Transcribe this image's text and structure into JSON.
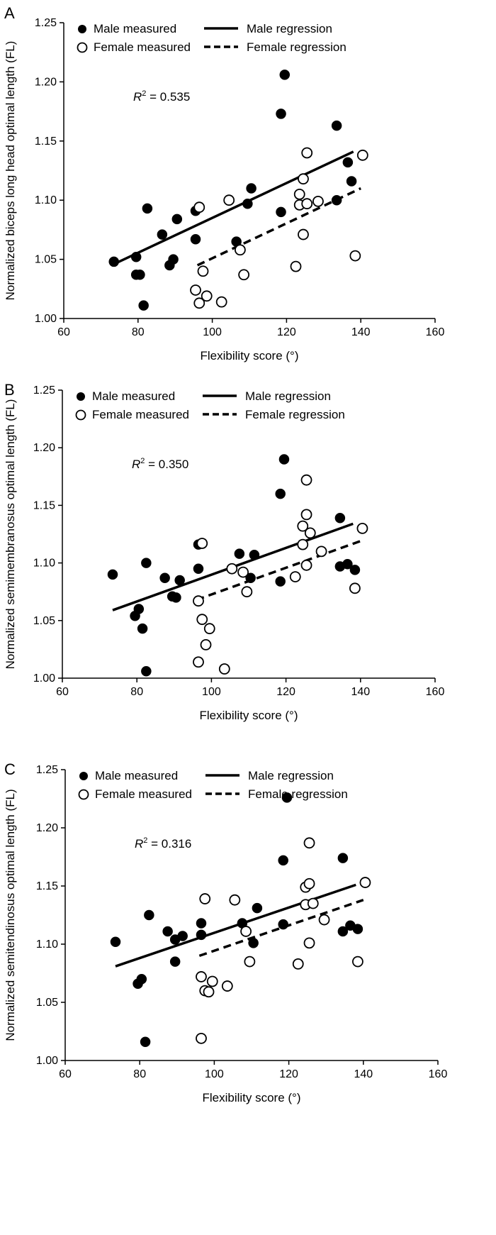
{
  "chart_data": [
    {
      "type": "scatter",
      "panel": "A",
      "xlabel": "Flexibility score (°)",
      "ylabel": "Normalized biceps long head optimal length (FL)",
      "xlim": [
        60,
        160
      ],
      "ylim": [
        1.0,
        1.25
      ],
      "xticks": [
        "60",
        "80",
        "100",
        "120",
        "140",
        "160"
      ],
      "yticks": [
        "1.00",
        "1.05",
        "1.10",
        "1.15",
        "1.20",
        "1.25"
      ],
      "legend": {
        "male_measured": "Male measured",
        "female_measured": "Female measured",
        "male_regression": "Male regression",
        "female_regression": "Female regression"
      },
      "r2_prefix": "R",
      "r2_sup": "2",
      "r2_value": " = 0.535",
      "series": [
        {
          "name": "Male measured",
          "x": [
            73.5,
            79.5,
            80.5,
            82.5,
            79.5,
            81.5,
            86.5,
            89.5,
            88.5,
            90.5,
            95.5,
            95.5,
            106.5,
            109.5,
            110.5,
            118.5,
            118.5,
            119.5,
            133.5,
            133.5,
            136.5,
            137.5
          ],
          "y": [
            1.048,
            1.052,
            1.037,
            1.093,
            1.037,
            1.011,
            1.071,
            1.05,
            1.045,
            1.084,
            1.067,
            1.091,
            1.065,
            1.097,
            1.11,
            1.09,
            1.173,
            1.206,
            1.1,
            1.163,
            1.132,
            1.116
          ]
        },
        {
          "name": "Female measured",
          "x": [
            95.5,
            96.5,
            97.5,
            96.5,
            98.5,
            102.5,
            104.5,
            107.5,
            108.5,
            122.5,
            123.5,
            124.5,
            124.5,
            125.5,
            125.5,
            123.5,
            128.5,
            138.5,
            140.5
          ],
          "y": [
            1.024,
            1.013,
            1.04,
            1.094,
            1.019,
            1.014,
            1.1,
            1.058,
            1.037,
            1.044,
            1.096,
            1.118,
            1.071,
            1.097,
            1.14,
            1.105,
            1.099,
            1.053,
            1.138
          ]
        }
      ],
      "regression": {
        "male": {
          "x": [
            73.5,
            138
          ],
          "y": [
            1.046,
            1.141
          ]
        },
        "female": {
          "x": [
            96,
            140
          ],
          "y": [
            1.045,
            1.11
          ]
        }
      }
    },
    {
      "type": "scatter",
      "panel": "B",
      "xlabel": "Flexibility score (°)",
      "ylabel": "Normalized semimembranosus optimal length (FL)",
      "xlim": [
        60,
        160
      ],
      "ylim": [
        1.0,
        1.25
      ],
      "xticks": [
        "60",
        "80",
        "100",
        "120",
        "140",
        "160"
      ],
      "yticks": [
        "1.00",
        "1.05",
        "1.10",
        "1.15",
        "1.20",
        "1.25"
      ],
      "legend": {
        "male_measured": "Male measured",
        "female_measured": "Female measured",
        "male_regression": "Male regression",
        "female_regression": "Female regression"
      },
      "r2_prefix": "R",
      "r2_sup": "2",
      "r2_value": " = 0.350",
      "series": [
        {
          "name": "Male measured",
          "x": [
            73.5,
            79.5,
            80.5,
            81.5,
            82.5,
            82.5,
            87.5,
            89.5,
            90.5,
            91.5,
            96.5,
            96.5,
            107.5,
            110.5,
            111.5,
            118.5,
            118.5,
            119.5,
            134.5,
            134.5,
            136.5,
            138.5
          ],
          "y": [
            1.09,
            1.054,
            1.06,
            1.043,
            1.006,
            1.1,
            1.087,
            1.071,
            1.07,
            1.085,
            1.116,
            1.095,
            1.108,
            1.087,
            1.107,
            1.084,
            1.16,
            1.19,
            1.097,
            1.139,
            1.099,
            1.094
          ]
        },
        {
          "name": "Female measured",
          "x": [
            96.5,
            96.5,
            97.5,
            97.5,
            98.5,
            99.5,
            103.5,
            105.5,
            108.5,
            109.5,
            122.5,
            124.5,
            124.5,
            125.5,
            125.5,
            125.5,
            126.5,
            129.5,
            138.5,
            140.5
          ],
          "y": [
            1.067,
            1.014,
            1.051,
            1.117,
            1.029,
            1.043,
            1.008,
            1.095,
            1.092,
            1.075,
            1.088,
            1.116,
            1.132,
            1.098,
            1.142,
            1.172,
            1.126,
            1.11,
            1.078,
            1.13
          ]
        }
      ],
      "regression": {
        "male": {
          "x": [
            73.5,
            138
          ],
          "y": [
            1.059,
            1.134
          ]
        },
        "female": {
          "x": [
            96,
            140
          ],
          "y": [
            1.068,
            1.119
          ]
        }
      }
    },
    {
      "type": "scatter",
      "panel": "C",
      "xlabel": "Flexibility score (°)",
      "ylabel": "Normalized semitendinosus optimal length (FL)",
      "xlim": [
        60,
        160
      ],
      "ylim": [
        1.0,
        1.25
      ],
      "xticks": [
        "60",
        "80",
        "100",
        "120",
        "140",
        "160"
      ],
      "yticks": [
        "1.00",
        "1.05",
        "1.10",
        "1.15",
        "1.20",
        "1.25"
      ],
      "legend": {
        "male_measured": "Male measured",
        "female_measured": "Female measured",
        "male_regression": "Male regression",
        "female_regression": "Female regression"
      },
      "r2_prefix": "R",
      "r2_sup": "2",
      "r2_value": " = 0.316",
      "series": [
        {
          "name": "Male measured",
          "x": [
            73.5,
            79.5,
            80.5,
            81.5,
            82.5,
            87.5,
            89.5,
            89.5,
            91.5,
            96.5,
            96.5,
            107.5,
            110.5,
            111.5,
            118.5,
            118.5,
            119.5,
            134.5,
            134.5,
            136.5,
            138.5
          ],
          "y": [
            1.102,
            1.066,
            1.07,
            1.016,
            1.125,
            1.111,
            1.104,
            1.085,
            1.107,
            1.108,
            1.118,
            1.118,
            1.101,
            1.131,
            1.117,
            1.172,
            1.226,
            1.111,
            1.174,
            1.116,
            1.113
          ]
        },
        {
          "name": "Female measured",
          "x": [
            96.5,
            96.5,
            97.5,
            97.5,
            98.5,
            99.5,
            103.5,
            105.5,
            108.5,
            109.5,
            122.5,
            124.5,
            124.5,
            125.5,
            125.5,
            125.5,
            126.5,
            129.5,
            138.5,
            140.5
          ],
          "y": [
            1.019,
            1.072,
            1.139,
            1.06,
            1.059,
            1.068,
            1.064,
            1.138,
            1.111,
            1.085,
            1.083,
            1.134,
            1.149,
            1.101,
            1.152,
            1.187,
            1.135,
            1.121,
            1.085,
            1.153
          ]
        }
      ],
      "regression": {
        "male": {
          "x": [
            73.5,
            138
          ],
          "y": [
            1.081,
            1.151
          ]
        },
        "female": {
          "x": [
            96,
            140
          ],
          "y": [
            1.09,
            1.138
          ]
        }
      }
    }
  ]
}
